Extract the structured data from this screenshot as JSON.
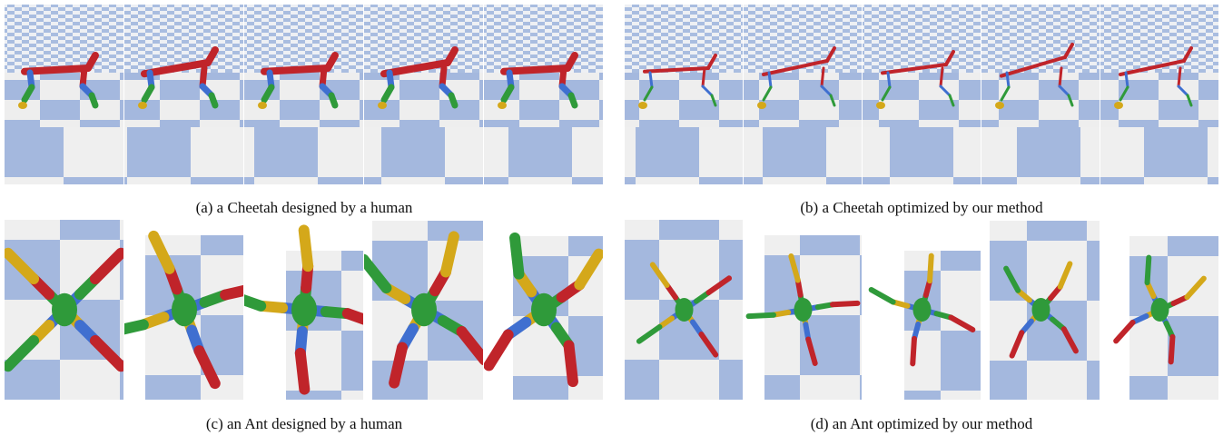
{
  "figure": {
    "panels": [
      {
        "caption": "(a) a Cheetah designed by a human"
      },
      {
        "caption": "(b) a Cheetah optimized by our method"
      },
      {
        "caption": "(c) an Ant designed by a human"
      },
      {
        "caption": "(d) an Ant optimized by our method"
      }
    ]
  }
}
